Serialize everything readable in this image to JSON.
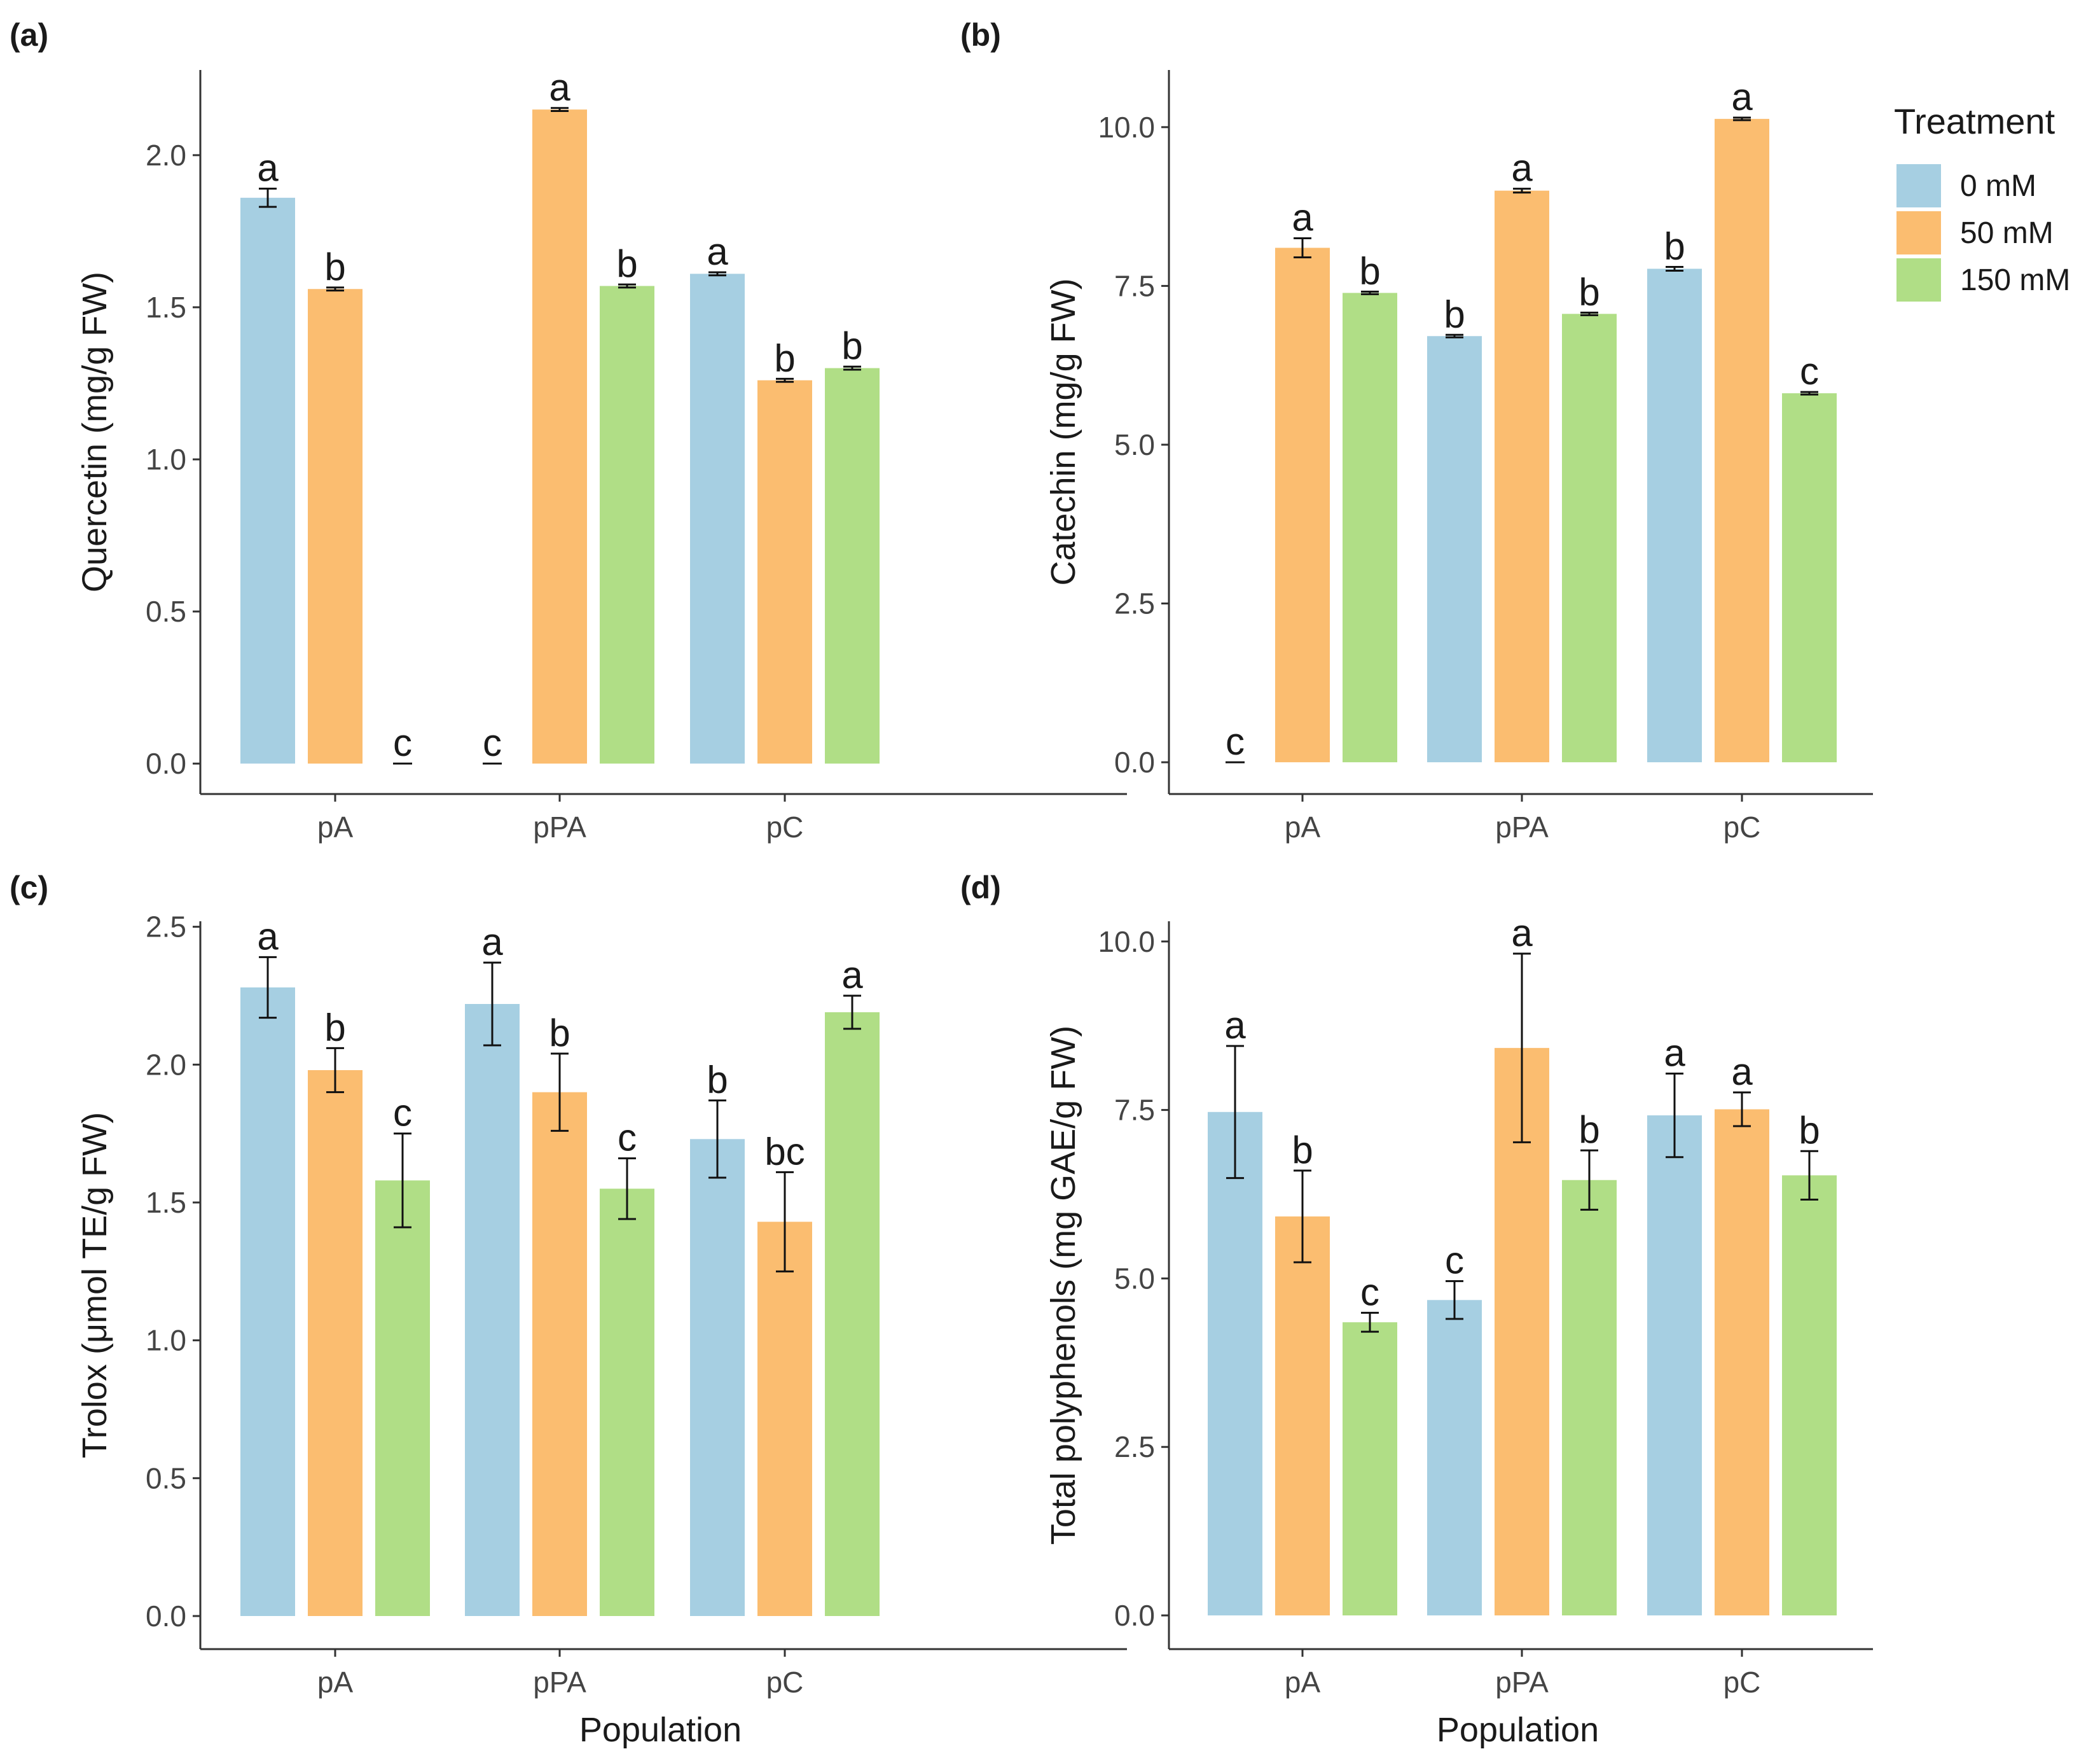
{
  "colors": {
    "0 mM": "#a6cfe2",
    "50 mM": "#fbbd70",
    "150 mM": "#b0de86",
    "axis": "#333333",
    "text": "#1a1a1a",
    "error": "#111111"
  },
  "legend": {
    "title": "Treatment",
    "items": [
      "0 mM",
      "50 mM",
      "150 mM"
    ]
  },
  "chart_data": [
    {
      "type": "bar",
      "panel": "(a)",
      "ylabel": "Quercetin (mg/g FW)",
      "xlabel": "",
      "categories": [
        "pA",
        "pPA",
        "pC"
      ],
      "ylim": [
        -0.1,
        2.28
      ],
      "yticks": [
        "0.0",
        "0.5",
        "1.0",
        "1.5",
        "2.0"
      ],
      "series": [
        {
          "name": "0 mM",
          "values": [
            1.86,
            0,
            1.61
          ],
          "errors": [
            0.03,
            0,
            0.005
          ],
          "labels": [
            "a",
            "c",
            "a"
          ]
        },
        {
          "name": "50 mM",
          "values": [
            1.56,
            2.15,
            1.26
          ],
          "errors": [
            0.005,
            0.005,
            0.005
          ],
          "labels": [
            "b",
            "a",
            "b"
          ]
        },
        {
          "name": "150 mM",
          "values": [
            0,
            1.57,
            1.3
          ],
          "errors": [
            0,
            0.005,
            0.005
          ],
          "labels": [
            "c",
            "b",
            "b"
          ]
        }
      ]
    },
    {
      "type": "bar",
      "panel": "(b)",
      "ylabel": "Catechin (mg/g FW)",
      "xlabel": "",
      "categories": [
        "pA",
        "pPA",
        "pC"
      ],
      "ylim": [
        -0.5,
        10.9
      ],
      "yticks": [
        "0.0",
        "2.5",
        "5.0",
        "7.5",
        "10.0"
      ],
      "series": [
        {
          "name": "0 mM",
          "values": [
            0,
            6.71,
            7.77
          ],
          "errors": [
            0,
            0.02,
            0.03
          ],
          "labels": [
            "c",
            "b",
            "b"
          ]
        },
        {
          "name": "50 mM",
          "values": [
            8.1,
            9.0,
            10.13
          ],
          "errors": [
            0.15,
            0.03,
            0.02
          ],
          "labels": [
            "a",
            "a",
            "a"
          ]
        },
        {
          "name": "150 mM",
          "values": [
            7.39,
            7.06,
            5.81
          ],
          "errors": [
            0.02,
            0.02,
            0.02
          ],
          "labels": [
            "b",
            "b",
            "c"
          ]
        }
      ]
    },
    {
      "type": "bar",
      "panel": "(c)",
      "ylabel": "Trolox (μmol TE/g FW)",
      "xlabel": "Population",
      "categories": [
        "pA",
        "pPA",
        "pC"
      ],
      "ylim": [
        -0.12,
        2.52
      ],
      "yticks": [
        "0.0",
        "0.5",
        "1.0",
        "1.5",
        "2.0",
        "2.5"
      ],
      "series": [
        {
          "name": "0 mM",
          "values": [
            2.28,
            2.22,
            1.73
          ],
          "errors": [
            0.11,
            0.15,
            0.14
          ],
          "labels": [
            "a",
            "a",
            "b"
          ]
        },
        {
          "name": "50 mM",
          "values": [
            1.98,
            1.9,
            1.43
          ],
          "errors": [
            0.08,
            0.14,
            0.18
          ],
          "labels": [
            "b",
            "b",
            "bc"
          ]
        },
        {
          "name": "150 mM",
          "values": [
            1.58,
            1.55,
            2.19
          ],
          "errors": [
            0.17,
            0.11,
            0.06
          ],
          "labels": [
            "c",
            "c",
            "a"
          ]
        }
      ]
    },
    {
      "type": "bar",
      "panel": "(d)",
      "ylabel": "Total polyphenols (mg GAE/g FW)",
      "xlabel": "Population",
      "categories": [
        "pA",
        "pPA",
        "pC"
      ],
      "ylim": [
        -0.5,
        10.3
      ],
      "yticks": [
        "0.0",
        "2.5",
        "5.0",
        "7.5",
        "10.0"
      ],
      "series": [
        {
          "name": "0 mM",
          "values": [
            7.47,
            4.68,
            7.42
          ],
          "errors": [
            0.98,
            0.28,
            0.62
          ],
          "labels": [
            "a",
            "c",
            "a"
          ]
        },
        {
          "name": "50 mM",
          "values": [
            5.92,
            8.42,
            7.51
          ],
          "errors": [
            0.68,
            1.4,
            0.25
          ],
          "labels": [
            "b",
            "a",
            "a"
          ]
        },
        {
          "name": "150 mM",
          "values": [
            4.35,
            6.46,
            6.53
          ],
          "errors": [
            0.14,
            0.44,
            0.36
          ],
          "labels": [
            "c",
            "b",
            "b"
          ]
        }
      ]
    }
  ]
}
